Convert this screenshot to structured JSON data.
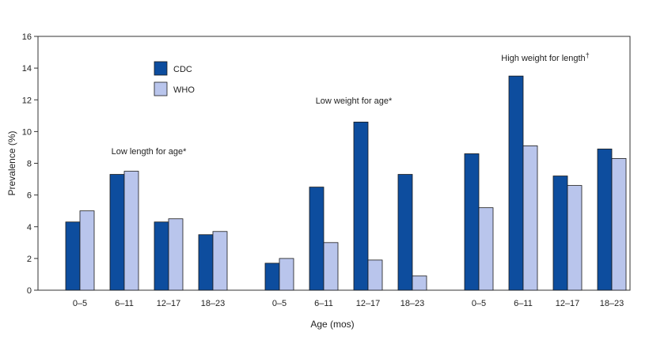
{
  "chart_data": {
    "type": "bar",
    "xlabel": "Age (mos)",
    "ylabel": "Prevalence (%)",
    "ylim": [
      0,
      16
    ],
    "yticks": [
      0,
      2,
      4,
      6,
      8,
      10,
      12,
      14,
      16
    ],
    "grid": false,
    "legend_position": "top-left",
    "colors": {
      "CDC": "#0d4d9e",
      "WHO": "#b9c5ec"
    },
    "series": [
      {
        "name": "CDC"
      },
      {
        "name": "WHO"
      }
    ],
    "groups": [
      {
        "label": "Low length for age*",
        "categories": [
          "0–5",
          "6–11",
          "12–17",
          "18–23"
        ],
        "values": {
          "CDC": [
            4.3,
            7.3,
            4.3,
            3.5
          ],
          "WHO": [
            5.0,
            7.5,
            4.5,
            3.7
          ]
        }
      },
      {
        "label": "Low weight for age*",
        "categories": [
          "0–5",
          "6–11",
          "12–17",
          "18–23"
        ],
        "values": {
          "CDC": [
            1.7,
            6.5,
            10.6,
            7.3
          ],
          "WHO": [
            2.0,
            3.0,
            1.9,
            0.9
          ]
        }
      },
      {
        "label": "High weight for length",
        "label_mark": "†",
        "categories": [
          "0–5",
          "6–11",
          "12–17",
          "18–23"
        ],
        "values": {
          "CDC": [
            8.6,
            13.5,
            7.2,
            8.9
          ],
          "WHO": [
            5.2,
            9.1,
            6.6,
            8.3
          ]
        }
      }
    ]
  }
}
